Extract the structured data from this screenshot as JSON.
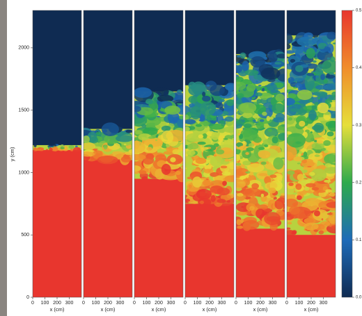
{
  "chart_data": {
    "type": "heatmap",
    "ylabel": "y (cm)",
    "xlabel": "x (cm)",
    "ylim": [
      0,
      2300
    ],
    "yticks": [
      0,
      500,
      1000,
      1500,
      2000
    ],
    "xlim": [
      0,
      400
    ],
    "xticks": [
      0,
      100,
      200,
      300
    ],
    "panels": [
      {
        "mixing_zone": [
          1180,
          1220
        ]
      },
      {
        "mixing_zone": [
          1100,
          1350
        ]
      },
      {
        "mixing_zone": [
          950,
          1650
        ]
      },
      {
        "mixing_zone": [
          750,
          1700
        ]
      },
      {
        "mixing_zone": [
          550,
          1950
        ]
      },
      {
        "mixing_zone": [
          500,
          2100
        ]
      }
    ],
    "colorbar": {
      "lim": [
        0,
        0.5
      ],
      "ticks": [
        {
          "value": 0,
          "label": "0.0"
        },
        0.1,
        0.2,
        0.3,
        0.4,
        {
          "value": 0.5,
          "label": "0.5"
        }
      ],
      "colors": [
        "#0f2b52",
        "#1d6bb8",
        "#2eaa4c",
        "#e6df3a",
        "#f08d2b",
        "#e8362e"
      ]
    }
  }
}
